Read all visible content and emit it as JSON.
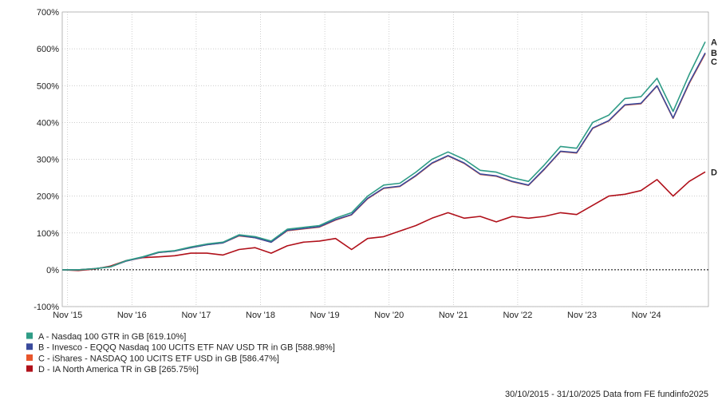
{
  "chart_data": {
    "type": "line",
    "x": [
      "2015-10",
      "2016-01",
      "2016-04",
      "2016-07",
      "2016-10",
      "2017-01",
      "2017-04",
      "2017-07",
      "2017-10",
      "2018-01",
      "2018-04",
      "2018-07",
      "2018-10",
      "2019-01",
      "2019-04",
      "2019-07",
      "2019-10",
      "2020-01",
      "2020-04",
      "2020-07",
      "2020-10",
      "2021-01",
      "2021-04",
      "2021-07",
      "2021-10",
      "2022-01",
      "2022-04",
      "2022-07",
      "2022-10",
      "2023-01",
      "2023-04",
      "2023-07",
      "2023-10",
      "2024-01",
      "2024-04",
      "2024-07",
      "2024-10",
      "2025-01",
      "2025-04",
      "2025-07",
      "2025-10"
    ],
    "xlim": [
      "2015-10",
      "2025-10"
    ],
    "xticks": [
      {
        "value": "2015-11",
        "label": "Nov '15"
      },
      {
        "value": "2016-11",
        "label": "Nov '16"
      },
      {
        "value": "2017-11",
        "label": "Nov '17"
      },
      {
        "value": "2018-11",
        "label": "Nov '18"
      },
      {
        "value": "2019-11",
        "label": "Nov '19"
      },
      {
        "value": "2020-11",
        "label": "Nov '20"
      },
      {
        "value": "2021-11",
        "label": "Nov '21"
      },
      {
        "value": "2022-11",
        "label": "Nov '22"
      },
      {
        "value": "2023-11",
        "label": "Nov '23"
      },
      {
        "value": "2024-11",
        "label": "Nov '24"
      }
    ],
    "ylim": [
      -100,
      700
    ],
    "yticks": [
      {
        "value": -100,
        "label": "-100%"
      },
      {
        "value": 0,
        "label": "0%"
      },
      {
        "value": 100,
        "label": "100%"
      },
      {
        "value": 200,
        "label": "200%"
      },
      {
        "value": 300,
        "label": "300%"
      },
      {
        "value": 400,
        "label": "400%"
      },
      {
        "value": 500,
        "label": "500%"
      },
      {
        "value": 600,
        "label": "600%"
      },
      {
        "value": 700,
        "label": "700%"
      }
    ],
    "grid": true,
    "series": [
      {
        "name": "A - Nasdaq 100 GTR in GB [619.10%]",
        "end_label": "A",
        "color": "#2f9c86",
        "values": [
          0,
          0,
          3,
          8,
          25,
          35,
          48,
          52,
          62,
          70,
          75,
          95,
          90,
          78,
          110,
          115,
          120,
          140,
          155,
          200,
          230,
          235,
          265,
          300,
          320,
          300,
          270,
          265,
          250,
          240,
          285,
          335,
          330,
          400,
          420,
          465,
          470,
          520,
          430,
          530,
          619.1
        ]
      },
      {
        "name": "B - Invesco - EQQQ Nasdaq 100 UCITS ETF NAV USD TR in GB [588.98%]",
        "end_label": "B",
        "color": "#3a4a9c",
        "values": [
          0,
          0,
          3,
          8,
          24,
          34,
          47,
          51,
          60,
          68,
          73,
          93,
          87,
          75,
          107,
          112,
          117,
          136,
          150,
          194,
          222,
          227,
          256,
          290,
          310,
          290,
          260,
          255,
          240,
          230,
          274,
          322,
          318,
          385,
          405,
          448,
          452,
          500,
          412,
          508,
          588.98
        ]
      },
      {
        "name": "C - iShares - NASDAQ 100 UCITS ETF USD in GB [586.47%]",
        "end_label": "C",
        "color": "#e8552b",
        "values": [
          0,
          0,
          3,
          8,
          24,
          34,
          47,
          51,
          60,
          68,
          73,
          92,
          87,
          75,
          106,
          111,
          116,
          135,
          149,
          193,
          221,
          226,
          255,
          289,
          309,
          289,
          259,
          254,
          239,
          229,
          273,
          321,
          317,
          384,
          404,
          447,
          451,
          499,
          411,
          506,
          586.47
        ]
      },
      {
        "name": "D - IA North America TR in GB [265.75%]",
        "end_label": "D",
        "color": "#b0101a",
        "values": [
          0,
          -2,
          2,
          10,
          25,
          33,
          35,
          38,
          45,
          45,
          40,
          55,
          60,
          45,
          65,
          75,
          78,
          85,
          55,
          85,
          90,
          105,
          120,
          140,
          155,
          140,
          145,
          130,
          145,
          140,
          145,
          155,
          150,
          175,
          200,
          205,
          215,
          245,
          200,
          240,
          265.75
        ]
      }
    ],
    "source": "30/10/2015 - 31/10/2025 Data from FE fundinfo2025"
  }
}
